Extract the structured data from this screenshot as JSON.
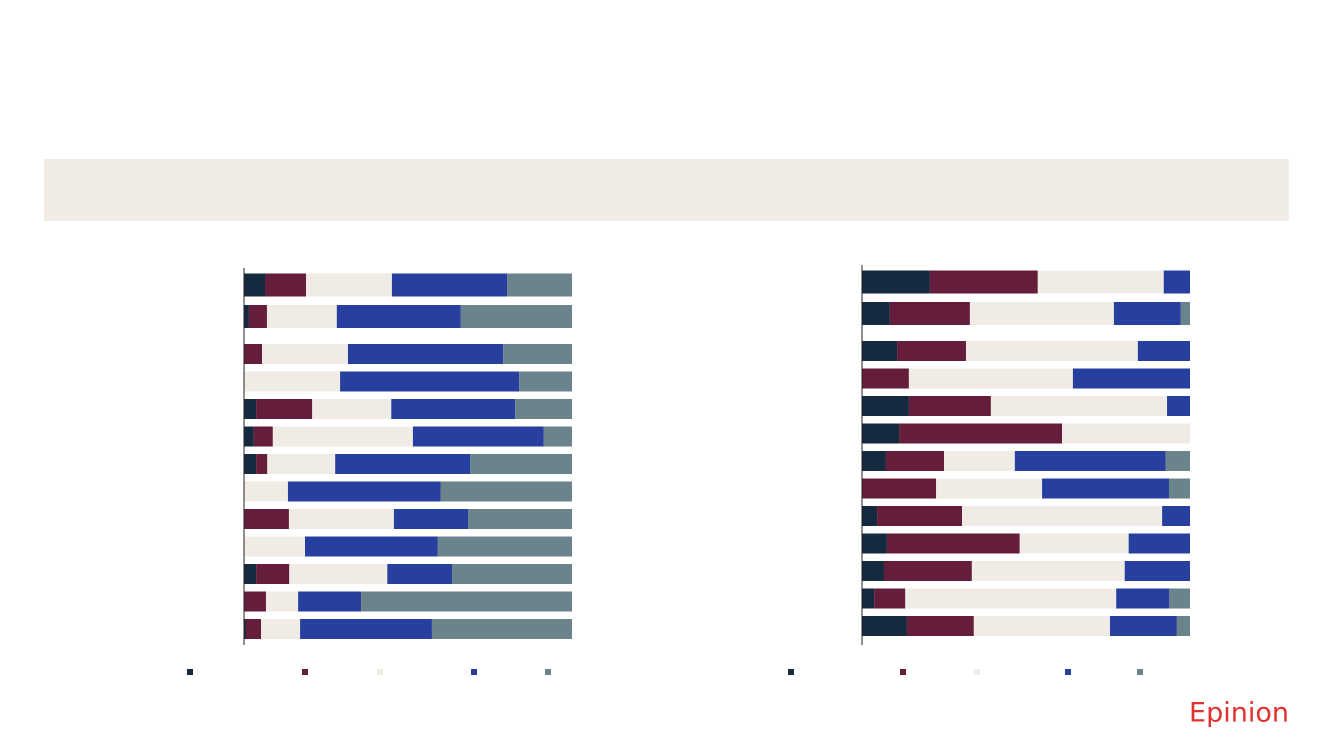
{
  "brand": "Epinion",
  "chart_data": [
    {
      "type": "stacked-bar-horizontal",
      "categories": [
        null,
        null,
        null,
        null,
        null,
        null,
        null,
        null,
        null,
        null,
        null,
        null,
        null
      ],
      "xlim": [
        0,
        100
      ],
      "series": [
        {
          "color": "#152a3f",
          "values": [
            6.4,
            1.5,
            0,
            0,
            3.7,
            3.0,
            3.7,
            0,
            0,
            0,
            3.7,
            0,
            0.6
          ]
        },
        {
          "color": "#641d3a",
          "values": [
            12.5,
            5.5,
            5.5,
            0,
            17.1,
            5.8,
            3.4,
            0,
            13.7,
            0,
            10.1,
            6.7,
            4.6
          ]
        },
        {
          "color": "#f0ebe4",
          "values": [
            26.2,
            21.3,
            26.2,
            29.3,
            24.1,
            42.7,
            20.7,
            13.4,
            32.0,
            18.6,
            29.9,
            9.8,
            11.9
          ]
        },
        {
          "color": "#273f9e",
          "values": [
            35.1,
            37.8,
            47.3,
            54.6,
            37.8,
            39.9,
            41.2,
            46.6,
            22.6,
            40.5,
            19.8,
            19.2,
            40.2
          ]
        },
        {
          "color": "#6b838b",
          "values": [
            19.8,
            33.9,
            21.0,
            16.1,
            17.3,
            8.6,
            31.0,
            40.0,
            31.7,
            40.9,
            36.5,
            64.3,
            42.7
          ]
        }
      ]
    },
    {
      "type": "stacked-bar-horizontal",
      "categories": [
        null,
        null,
        null,
        null,
        null,
        null,
        null,
        null,
        null,
        null,
        null,
        null,
        null
      ],
      "xlim": [
        0,
        100
      ],
      "series": [
        {
          "color": "#152a3f",
          "values": [
            20.7,
            8.5,
            10.7,
            0,
            14.3,
            11.3,
            7.3,
            0,
            4.6,
            7.6,
            6.7,
            3.7,
            13.7
          ]
        },
        {
          "color": "#641d3a",
          "values": [
            32.9,
            24.4,
            21.0,
            14.3,
            25.0,
            49.7,
            17.7,
            22.6,
            25.9,
            40.5,
            26.8,
            9.5,
            20.4
          ]
        },
        {
          "color": "#f0ebe4",
          "values": [
            38.4,
            43.9,
            52.4,
            50.0,
            53.7,
            39.0,
            21.6,
            32.3,
            61.0,
            33.2,
            46.6,
            64.3,
            41.5
          ]
        },
        {
          "color": "#273f9e",
          "values": [
            8.0,
            20.4,
            15.9,
            35.7,
            7.0,
            0,
            46.0,
            38.7,
            8.5,
            18.7,
            19.9,
            16.2,
            20.4
          ]
        },
        {
          "color": "#6b838b",
          "values": [
            0,
            2.8,
            0,
            0,
            0,
            0,
            7.4,
            6.4,
            0,
            0,
            0,
            6.3,
            4.0
          ]
        }
      ]
    }
  ]
}
